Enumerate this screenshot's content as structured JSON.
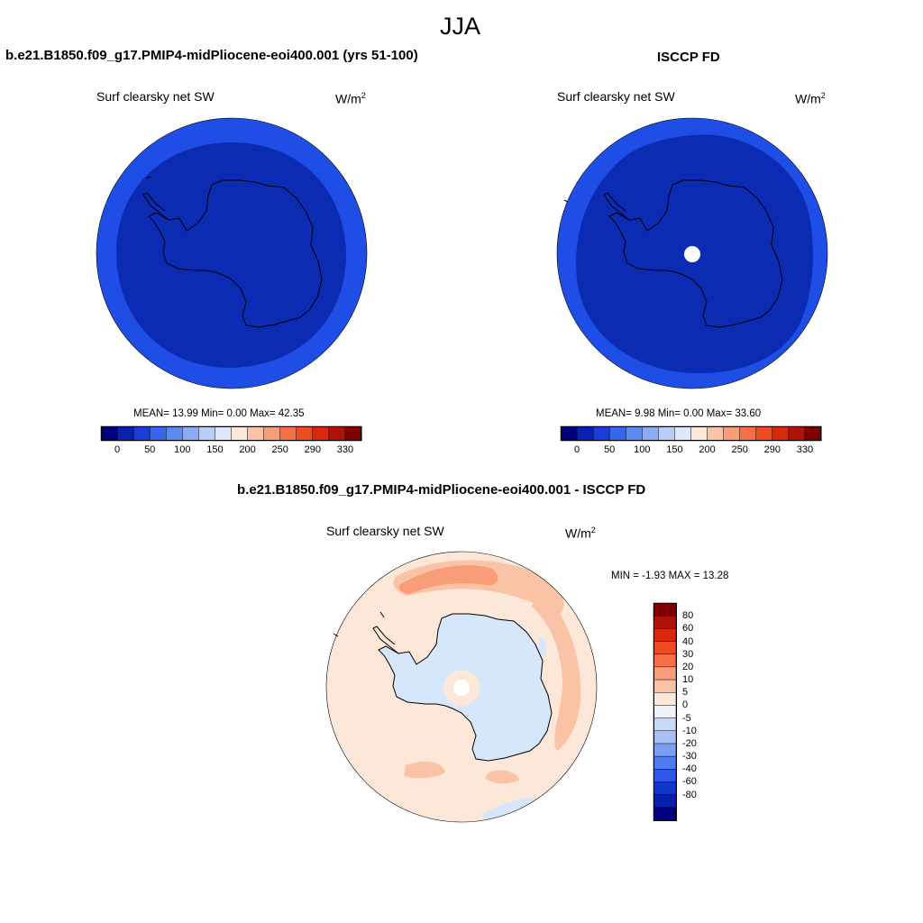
{
  "figure": {
    "season": "JJA"
  },
  "panels": {
    "model": {
      "case_title": "b.e21.B1850.f09_g17.PMIP4-midPliocene-eoi400.001 (yrs 51-100)",
      "variable": "Surf clearsky net SW",
      "units_base": "W/m",
      "units_exp": "2",
      "stats": "MEAN=  13.99  Min=   0.00  Max=  42.35",
      "outer_ring_color": "#1f4ee6",
      "inner_disk_color": "#0b2bb3"
    },
    "obs": {
      "case_title": "ISCCP FD",
      "variable": "Surf clearsky net SW",
      "units_base": "W/m",
      "units_exp": "2",
      "stats": "MEAN=   9.98  Min=   0.00  Max=  33.60",
      "outer_ring_color": "#1f4ee6",
      "inner_disk_color": "#0b2bb3"
    },
    "diff": {
      "case_title": "b.e21.B1850.f09_g17.PMIP4-midPliocene-eoi400.001 - ISCCP FD",
      "variable": "Surf clearsky net SW",
      "units_base": "W/m",
      "units_exp": "2",
      "stats": "MIN =  -1.93 MAX =  13.28"
    }
  },
  "colorbar_abs": {
    "colors": [
      "#00007f",
      "#0a20b0",
      "#1a3cd8",
      "#3566f0",
      "#5b8af5",
      "#8bacf5",
      "#b8cdf8",
      "#dde8fc",
      "#fde7d8",
      "#fbc3a6",
      "#f99d78",
      "#f66f46",
      "#ef4a20",
      "#d9280b",
      "#b01208",
      "#800000"
    ],
    "labels": [
      "0",
      "50",
      "100",
      "150",
      "200",
      "250",
      "290",
      "330"
    ]
  },
  "colorbar_diff": {
    "colors": [
      "#800000",
      "#b01208",
      "#d9280b",
      "#ef4a20",
      "#f66f46",
      "#f99d78",
      "#fbc3a6",
      "#fde7d8",
      "#eef3fb",
      "#c8daf8",
      "#a6c0f5",
      "#7a9ef3",
      "#4f7af0",
      "#2d58e8",
      "#1236c9",
      "#0a1fa8",
      "#00007f"
    ],
    "labels": [
      "80",
      "60",
      "40",
      "30",
      "20",
      "10",
      "5",
      "0",
      "-5",
      "-10",
      "-20",
      "-30",
      "-40",
      "-60",
      "-80"
    ]
  }
}
